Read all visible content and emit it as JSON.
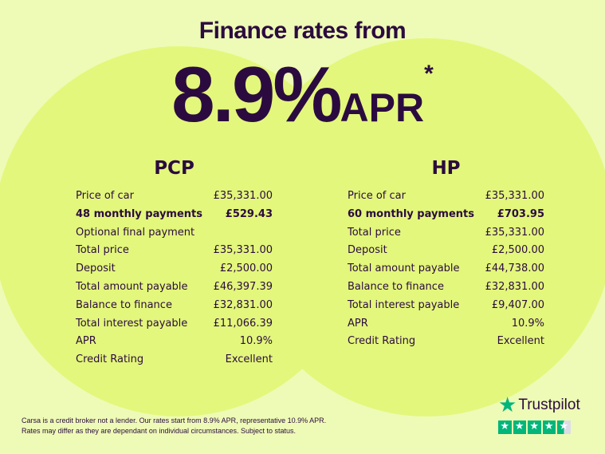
{
  "header": {
    "title": "Finance rates from",
    "rate": "8.9%",
    "apr": "APR",
    "asterisk": "*"
  },
  "colors": {
    "background": "#eefbb6",
    "circle": "#e3f77c",
    "text": "#2b0b3f",
    "trustpilot": "#00b67a"
  },
  "pcp": {
    "title": "PCP",
    "rows": [
      {
        "label": "Price of car",
        "value": "£35,331.00"
      },
      {
        "label": "48 monthly payments",
        "value": "£529.43"
      },
      {
        "label": "Optional final payment",
        "value": ""
      },
      {
        "label": "Total price",
        "value": "£35,331.00"
      },
      {
        "label": "Deposit",
        "value": "£2,500.00"
      },
      {
        "label": "Total amount payable",
        "value": "£46,397.39"
      },
      {
        "label": "Balance to finance",
        "value": "£32,831.00"
      },
      {
        "label": "Total interest payable",
        "value": "£11,066.39"
      },
      {
        "label": "APR",
        "value": "10.9%"
      },
      {
        "label": "Credit Rating",
        "value": "Excellent"
      }
    ]
  },
  "hp": {
    "title": "HP",
    "rows": [
      {
        "label": "Price of car",
        "value": "£35,331.00"
      },
      {
        "label": "60 monthly payments",
        "value": "£703.95"
      },
      {
        "label": "Total price",
        "value": "£35,331.00"
      },
      {
        "label": "Deposit",
        "value": "£2,500.00"
      },
      {
        "label": "Total amount payable",
        "value": "£44,738.00"
      },
      {
        "label": "Balance to finance",
        "value": "£32,831.00"
      },
      {
        "label": "Total interest payable",
        "value": "£9,407.00"
      },
      {
        "label": "APR",
        "value": "10.9%"
      },
      {
        "label": "Credit Rating",
        "value": "Excellent"
      }
    ]
  },
  "disclaimer": {
    "line1": "Carsa is a credit broker not a lender. Our rates start from 8.9% APR, representative 10.9% APR.",
    "line2": "Rates may differ as they are dependant on individual circumstances. Subject to status."
  },
  "trustpilot": {
    "name": "Trustpilot",
    "rating_stars": 4.5,
    "max_stars": 5
  }
}
